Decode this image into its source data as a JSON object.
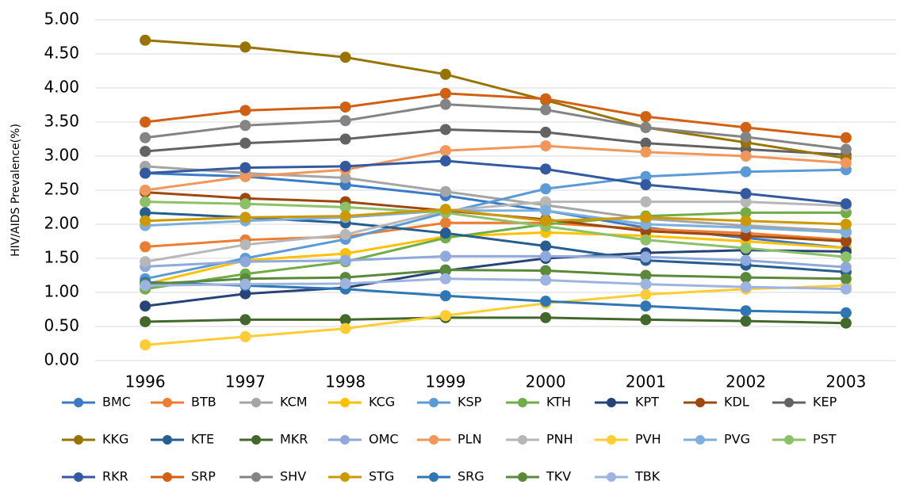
{
  "chart_data": {
    "type": "line",
    "y_label": "HIV/AIDS Prevalence(%)",
    "categories": [
      "1996",
      "1997",
      "1998",
      "1999",
      "2000",
      "2001",
      "2002",
      "2003"
    ],
    "ylim": [
      0,
      5
    ],
    "yticks": [
      {
        "value": 0,
        "label": "0.00"
      },
      {
        "value": 0.5,
        "label": "0.50"
      },
      {
        "value": 1,
        "label": "1.00"
      },
      {
        "value": 1.5,
        "label": "1.50"
      },
      {
        "value": 2,
        "label": "2.00"
      },
      {
        "value": 2.5,
        "label": "2.50"
      },
      {
        "value": 3,
        "label": "3.00"
      },
      {
        "value": 3.5,
        "label": "3.50"
      },
      {
        "value": 4,
        "label": "4.00"
      },
      {
        "value": 4.5,
        "label": "4.50"
      },
      {
        "value": 5,
        "label": "5.00"
      }
    ],
    "grid": true,
    "series": [
      {
        "name": "BMC",
        "color": "#3a7bc8",
        "values": [
          2.75,
          2.7,
          2.58,
          2.42,
          2.2,
          1.95,
          1.8,
          1.65
        ]
      },
      {
        "name": "BTB",
        "color": "#ed7d31",
        "values": [
          1.67,
          1.77,
          1.82,
          2.02,
          2.02,
          1.93,
          1.87,
          1.77
        ]
      },
      {
        "name": "KCM",
        "color": "#a5a5a5",
        "values": [
          2.85,
          2.75,
          2.68,
          2.48,
          2.28,
          2.08,
          1.98,
          1.9
        ]
      },
      {
        "name": "KCG",
        "color": "#ffc000",
        "values": [
          1.12,
          1.47,
          1.57,
          1.82,
          1.88,
          1.83,
          1.75,
          1.65
        ]
      },
      {
        "name": "KSP",
        "color": "#5b9bd5",
        "values": [
          1.2,
          1.5,
          1.78,
          2.17,
          2.52,
          2.7,
          2.77,
          2.8
        ]
      },
      {
        "name": "KTH",
        "color": "#70ad47",
        "values": [
          1.05,
          1.27,
          1.45,
          1.8,
          2.0,
          2.12,
          2.17,
          2.17
        ]
      },
      {
        "name": "KPT",
        "color": "#264478",
        "values": [
          0.8,
          0.98,
          1.07,
          1.32,
          1.5,
          1.58,
          1.62,
          1.6
        ]
      },
      {
        "name": "KDL",
        "color": "#9e480e",
        "values": [
          2.47,
          2.38,
          2.33,
          2.2,
          2.07,
          1.9,
          1.83,
          1.75
        ]
      },
      {
        "name": "KEP",
        "color": "#636363",
        "values": [
          3.07,
          3.19,
          3.25,
          3.39,
          3.35,
          3.19,
          3.1,
          3.02
        ]
      },
      {
        "name": "KKG",
        "color": "#997300",
        "values": [
          4.7,
          4.6,
          4.45,
          4.2,
          3.82,
          3.42,
          3.2,
          2.97
        ]
      },
      {
        "name": "KTE",
        "color": "#255e91",
        "values": [
          2.17,
          2.1,
          2.02,
          1.87,
          1.68,
          1.47,
          1.4,
          1.3
        ]
      },
      {
        "name": "MKR",
        "color": "#43682b",
        "values": [
          0.57,
          0.6,
          0.6,
          0.63,
          0.63,
          0.6,
          0.58,
          0.55
        ]
      },
      {
        "name": "OMC",
        "color": "#8fa9dc",
        "values": [
          1.38,
          1.45,
          1.47,
          1.53,
          1.53,
          1.52,
          1.47,
          1.37
        ]
      },
      {
        "name": "PLN",
        "color": "#f1975a",
        "values": [
          2.5,
          2.7,
          2.8,
          3.08,
          3.15,
          3.06,
          3.0,
          2.9
        ]
      },
      {
        "name": "PNH",
        "color": "#b7b7b7",
        "values": [
          1.45,
          1.7,
          1.85,
          2.2,
          2.33,
          2.33,
          2.33,
          2.27
        ]
      },
      {
        "name": "PVH",
        "color": "#ffcd33",
        "values": [
          0.23,
          0.35,
          0.47,
          0.66,
          0.84,
          0.97,
          1.05,
          1.1
        ]
      },
      {
        "name": "PVG",
        "color": "#7cafdd",
        "values": [
          1.98,
          2.05,
          2.1,
          2.2,
          2.2,
          2.0,
          1.95,
          1.88
        ]
      },
      {
        "name": "PST",
        "color": "#8cc168",
        "values": [
          2.33,
          2.3,
          2.25,
          2.17,
          1.97,
          1.77,
          1.65,
          1.52
        ]
      },
      {
        "name": "RKR",
        "color": "#335aa1",
        "values": [
          2.75,
          2.83,
          2.85,
          2.93,
          2.81,
          2.58,
          2.45,
          2.3
        ]
      },
      {
        "name": "SRP",
        "color": "#d26012",
        "values": [
          3.5,
          3.67,
          3.72,
          3.92,
          3.84,
          3.58,
          3.42,
          3.27
        ]
      },
      {
        "name": "SHV",
        "color": "#848484",
        "values": [
          3.27,
          3.45,
          3.52,
          3.76,
          3.68,
          3.42,
          3.28,
          3.1
        ]
      },
      {
        "name": "STG",
        "color": "#cc9a00",
        "values": [
          2.05,
          2.1,
          2.12,
          2.22,
          2.05,
          2.1,
          2.05,
          2.0
        ]
      },
      {
        "name": "SRG",
        "color": "#2f76b5",
        "values": [
          1.15,
          1.1,
          1.05,
          0.95,
          0.87,
          0.8,
          0.73,
          0.7
        ]
      },
      {
        "name": "TKV",
        "color": "#5a8a39",
        "values": [
          1.12,
          1.2,
          1.22,
          1.33,
          1.32,
          1.25,
          1.22,
          1.2
        ]
      },
      {
        "name": "TBK",
        "color": "#9db3e0",
        "values": [
          1.1,
          1.12,
          1.13,
          1.2,
          1.18,
          1.12,
          1.08,
          1.05
        ]
      }
    ]
  }
}
